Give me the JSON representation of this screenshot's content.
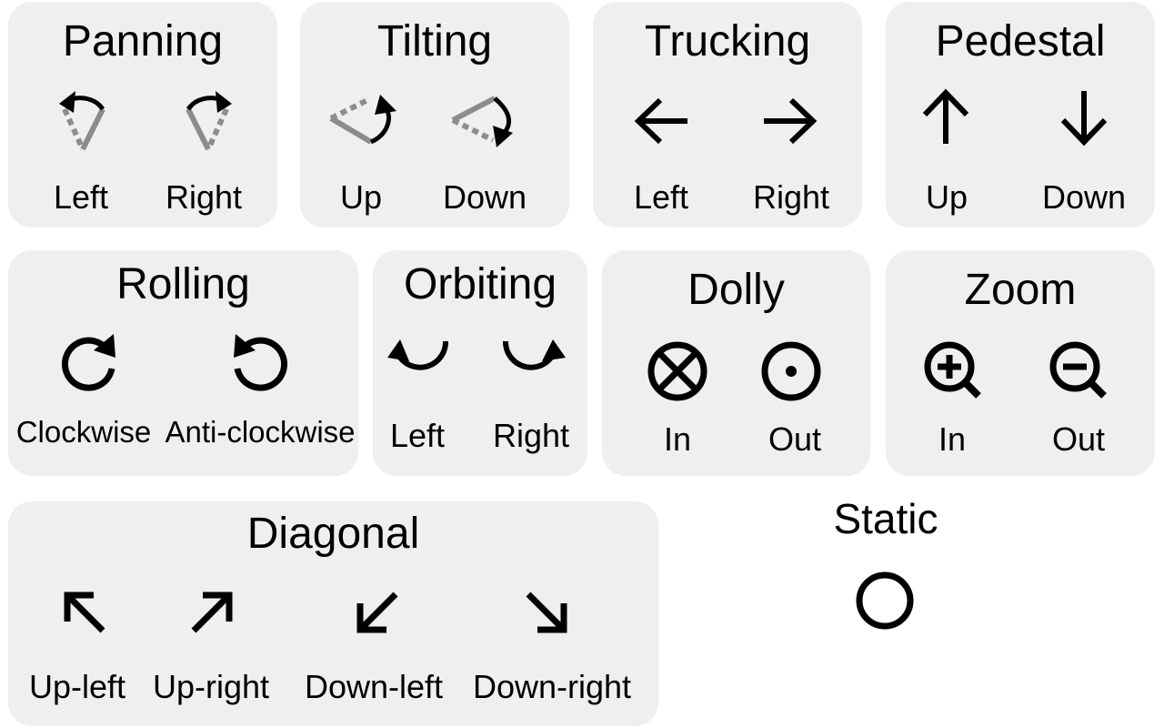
{
  "groups": {
    "panning": {
      "title": "Panning",
      "left": "Left",
      "right": "Right",
      "left_icon": "pan-left-icon",
      "right_icon": "pan-right-icon"
    },
    "tilting": {
      "title": "Tilting",
      "up": "Up",
      "down": "Down",
      "up_icon": "tilt-up-icon",
      "down_icon": "tilt-down-icon"
    },
    "trucking": {
      "title": "Trucking",
      "left": "Left",
      "right": "Right",
      "left_icon": "arrow-left-icon",
      "right_icon": "arrow-right-icon"
    },
    "pedestal": {
      "title": "Pedestal",
      "up": "Up",
      "down": "Down",
      "up_icon": "arrow-up-icon",
      "down_icon": "arrow-down-icon"
    },
    "rolling": {
      "title": "Rolling",
      "clockwise": "Clockwise",
      "anticlockwise": "Anti-clockwise",
      "clockwise_icon": "rotate-clockwise-icon",
      "anticlockwise_icon": "rotate-anticlockwise-icon"
    },
    "orbiting": {
      "title": "Orbiting",
      "left": "Left",
      "right": "Right",
      "left_icon": "orbit-left-icon",
      "right_icon": "orbit-right-icon"
    },
    "dolly": {
      "title": "Dolly",
      "in": "In",
      "out": "Out",
      "in_icon": "circled-cross-icon",
      "out_icon": "circled-dot-icon"
    },
    "zoom": {
      "title": "Zoom",
      "in": "In",
      "out": "Out",
      "in_icon": "zoom-in-icon",
      "out_icon": "zoom-out-icon"
    },
    "diagonal": {
      "title": "Diagonal",
      "up_left": "Up-left",
      "up_right": "Up-right",
      "down_left": "Down-left",
      "down_right": "Down-right"
    },
    "static": {
      "title": "Static",
      "icon": "circle-icon"
    }
  },
  "colors": {
    "panel": "#efefef",
    "icon": "#000000",
    "guide": "#8c8c8c"
  }
}
